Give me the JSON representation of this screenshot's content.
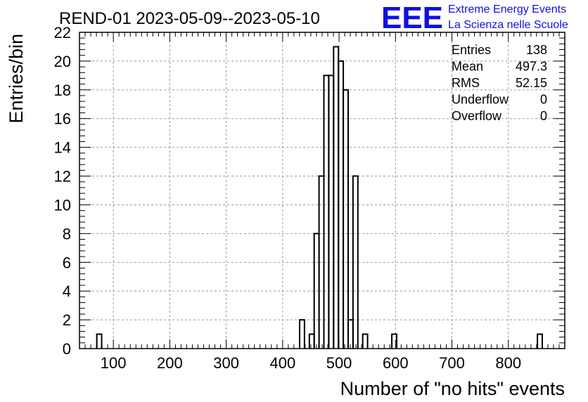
{
  "chart_data": {
    "type": "bar",
    "title": "REND-01 2023-05-09--2023-05-10",
    "xlabel": "Number of \"no hits\" events",
    "ylabel": "Entries/bin",
    "xlim": [
      40,
      900
    ],
    "ylim": [
      0,
      22
    ],
    "grid": true,
    "bin_width": 8.6,
    "bins": [
      {
        "x": 75.0,
        "count": 1
      },
      {
        "x": 434.4,
        "count": 2
      },
      {
        "x": 451.6,
        "count": 1
      },
      {
        "x": 460.2,
        "count": 8
      },
      {
        "x": 468.8,
        "count": 12
      },
      {
        "x": 477.4,
        "count": 19
      },
      {
        "x": 486.0,
        "count": 19
      },
      {
        "x": 494.6,
        "count": 21
      },
      {
        "x": 503.2,
        "count": 20
      },
      {
        "x": 511.8,
        "count": 18
      },
      {
        "x": 520.4,
        "count": 2
      },
      {
        "x": 529.0,
        "count": 12
      },
      {
        "x": 546.2,
        "count": 1
      },
      {
        "x": 597.8,
        "count": 1
      },
      {
        "x": 855.8,
        "count": 1
      }
    ],
    "x_ticks": [
      100,
      200,
      300,
      400,
      500,
      600,
      700,
      800
    ],
    "y_ticks": [
      0,
      2,
      4,
      6,
      8,
      10,
      12,
      14,
      16,
      18,
      20,
      22
    ],
    "stats": [
      {
        "label": "Entries",
        "value": "138"
      },
      {
        "label": "Mean",
        "value": "497.3"
      },
      {
        "label": "RMS",
        "value": "52.15"
      },
      {
        "label": "Underflow",
        "value": "0"
      },
      {
        "label": "Overflow",
        "value": "0"
      }
    ],
    "legend_position": "top-right"
  },
  "logo": {
    "mark": "EEE",
    "line1": "Extreme Energy Events",
    "line2": "La Scienza nelle Scuole",
    "color": "#1010e0"
  }
}
